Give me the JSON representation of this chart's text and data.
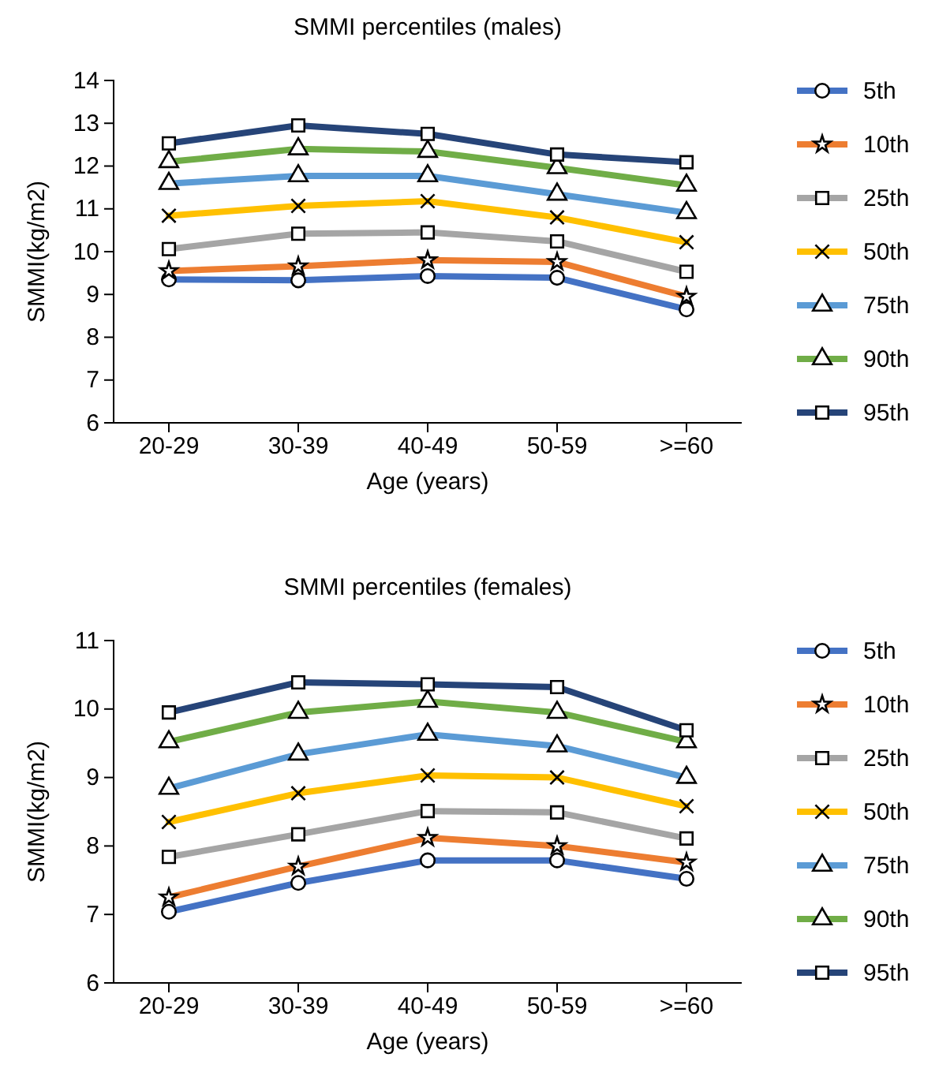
{
  "chart_data": [
    {
      "type": "line",
      "title": "SMMI percentiles (males)",
      "xlabel": "Age (years)",
      "ylabel": "SMMI(kg/m2)",
      "categories": [
        "20-29",
        "30-39",
        "40-49",
        "50-59",
        ">=60"
      ],
      "ylim": [
        6,
        14
      ],
      "yticks": [
        6,
        7,
        8,
        9,
        10,
        11,
        12,
        13,
        14
      ],
      "legend": "right",
      "grid": false,
      "series": [
        {
          "name": "5th",
          "color": "#4472c4",
          "marker": "circle",
          "values": [
            9.35,
            9.33,
            9.43,
            9.39,
            8.65
          ]
        },
        {
          "name": "10th",
          "color": "#ed7d31",
          "marker": "star",
          "values": [
            9.55,
            9.66,
            9.8,
            9.76,
            8.95
          ]
        },
        {
          "name": "25th",
          "color": "#a5a5a5",
          "marker": "square",
          "values": [
            10.06,
            10.42,
            10.45,
            10.24,
            9.53
          ]
        },
        {
          "name": "50th",
          "color": "#ffc000",
          "marker": "cross",
          "values": [
            10.84,
            11.07,
            11.18,
            10.8,
            10.22
          ]
        },
        {
          "name": "75th",
          "color": "#5b9bd5",
          "marker": "triangle",
          "values": [
            11.59,
            11.77,
            11.77,
            11.34,
            10.91
          ]
        },
        {
          "name": "90th",
          "color": "#70ad47",
          "marker": "triangle",
          "values": [
            12.1,
            12.4,
            12.34,
            11.96,
            11.55
          ]
        },
        {
          "name": "95th",
          "color": "#264478",
          "marker": "square",
          "values": [
            12.53,
            12.95,
            12.75,
            12.27,
            12.09
          ]
        }
      ]
    },
    {
      "type": "line",
      "title": "SMMI percentiles (females)",
      "xlabel": "Age (years)",
      "ylabel": "SMMI(kg/m2)",
      "categories": [
        "20-29",
        "30-39",
        "40-49",
        "50-59",
        ">=60"
      ],
      "ylim": [
        6,
        11
      ],
      "yticks": [
        6,
        7,
        8,
        9,
        10,
        11
      ],
      "legend": "right",
      "grid": false,
      "series": [
        {
          "name": "5th",
          "color": "#4472c4",
          "marker": "circle",
          "values": [
            7.04,
            7.46,
            7.79,
            7.79,
            7.52
          ]
        },
        {
          "name": "10th",
          "color": "#ed7d31",
          "marker": "star",
          "values": [
            7.25,
            7.7,
            8.12,
            8.0,
            7.76
          ]
        },
        {
          "name": "25th",
          "color": "#a5a5a5",
          "marker": "square",
          "values": [
            7.84,
            8.17,
            8.51,
            8.49,
            8.11
          ]
        },
        {
          "name": "50th",
          "color": "#ffc000",
          "marker": "cross",
          "values": [
            8.35,
            8.77,
            9.03,
            9.0,
            8.58
          ]
        },
        {
          "name": "75th",
          "color": "#5b9bd5",
          "marker": "triangle",
          "values": [
            8.84,
            9.34,
            9.63,
            9.46,
            9.0
          ]
        },
        {
          "name": "90th",
          "color": "#70ad47",
          "marker": "triangle",
          "values": [
            9.52,
            9.95,
            10.11,
            9.95,
            9.52
          ]
        },
        {
          "name": "95th",
          "color": "#264478",
          "marker": "square",
          "values": [
            9.95,
            10.39,
            10.36,
            10.32,
            9.69
          ]
        }
      ]
    }
  ]
}
